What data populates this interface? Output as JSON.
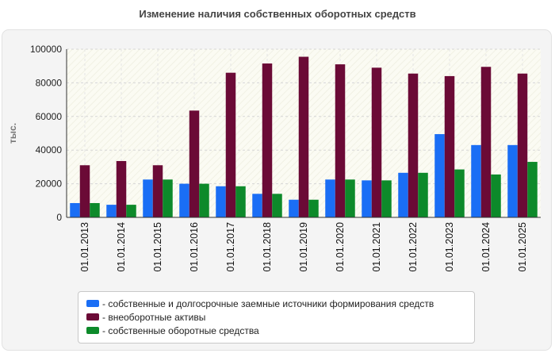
{
  "chart_data": {
    "type": "bar",
    "title": "Изменение наличия собственных оборотных средств",
    "ylabel": "тыс.",
    "xlabel": "",
    "ylim": [
      0,
      100000
    ],
    "yticks": [
      0,
      20000,
      40000,
      60000,
      80000,
      100000
    ],
    "grid": true,
    "legend_position": "bottom",
    "categories": [
      "01.01.2013",
      "01.01.2014",
      "01.01.2015",
      "01.01.2016",
      "01.01.2017",
      "01.01.2018",
      "01.01.2019",
      "01.01.2020",
      "01.01.2021",
      "01.01.2022",
      "01.01.2023",
      "01.01.2024",
      "01.01.2025"
    ],
    "series": [
      {
        "name": "- собственные и долгосрочные заемные источники формирования средств",
        "color": "#1a6ef5",
        "values": [
          8500,
          7500,
          22500,
          20000,
          18500,
          14000,
          10500,
          22500,
          22000,
          26500,
          49500,
          43000,
          43000
        ]
      },
      {
        "name": "- внеоборотные активы",
        "color": "#6b0a36",
        "values": [
          31000,
          33500,
          31000,
          63500,
          86000,
          91500,
          95500,
          91000,
          89000,
          85500,
          84000,
          89500,
          85500
        ]
      },
      {
        "name": "- собственные оборотные средства",
        "color": "#0d8a2a",
        "values": [
          8500,
          7500,
          22500,
          20000,
          18500,
          14000,
          10500,
          22500,
          22000,
          26500,
          28500,
          25500,
          33000
        ]
      }
    ]
  }
}
